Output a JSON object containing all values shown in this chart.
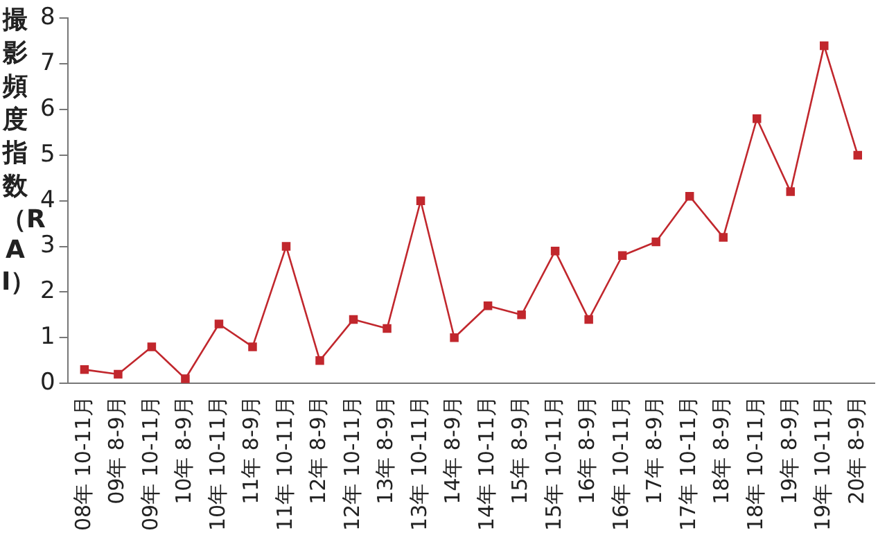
{
  "chart_data": {
    "type": "line",
    "ylabel": "撮影頻度指数（RAI）",
    "categories": [
      "08年 10-11月",
      "09年 8-9月",
      "09年 10-11月",
      "10年 8-9月",
      "10年 10-11月",
      "11年 8-9月",
      "11年 10-11月",
      "12年 8-9月",
      "12年 10-11月",
      "13年 8-9月",
      "13年 10-11月",
      "14年 8-9月",
      "14年 10-11月",
      "15年 8-9月",
      "15年 10-11月",
      "16年 8-9月",
      "16年 10-11月",
      "17年 8-9月",
      "17年 10-11月",
      "18年 8-9月",
      "18年 10-11月",
      "19年 8-9月",
      "19年 10-11月",
      "20年 8-9月"
    ],
    "series": [
      {
        "color": "#c1272d",
        "values": [
          0.3,
          0.2,
          0.8,
          0.1,
          1.3,
          0.8,
          3.0,
          0.5,
          1.4,
          1.2,
          4.0,
          1.0,
          1.7,
          1.5,
          2.9,
          1.4,
          2.8,
          3.1,
          4.1,
          3.2,
          5.8,
          4.2,
          7.4,
          5.0
        ]
      }
    ],
    "ylim": [
      0,
      8
    ],
    "yticks": [
      0,
      1,
      2,
      3,
      4,
      5,
      6,
      7,
      8
    ],
    "grid": false,
    "legend": false,
    "marker": "square",
    "line_style": "solid"
  }
}
